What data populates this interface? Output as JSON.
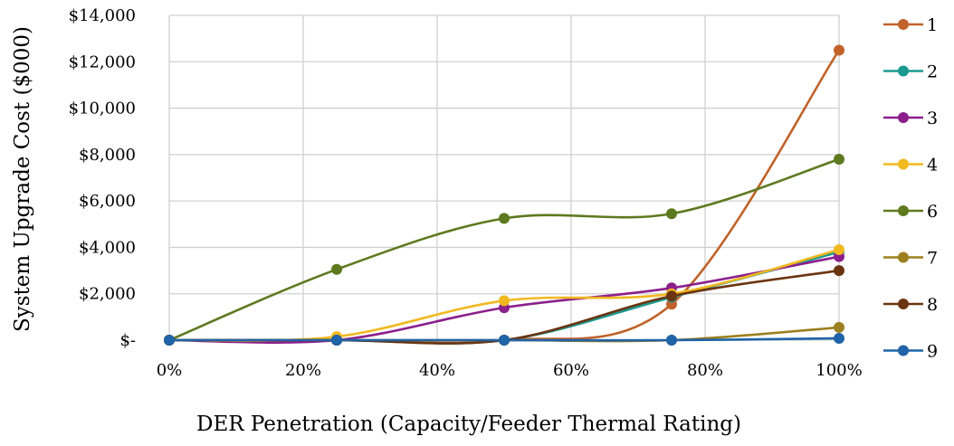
{
  "chart_data": {
    "type": "line",
    "title": "",
    "xlabel": "DER Penetration (Capacity/Feeder Thermal Rating)",
    "ylabel": "System Upgrade Cost ($000)",
    "x": [
      0,
      25,
      50,
      75,
      100
    ],
    "xticks": [
      0,
      20,
      40,
      60,
      80,
      100
    ],
    "xtick_labels": [
      "0%",
      "20%",
      "40%",
      "60%",
      "80%",
      "100%"
    ],
    "xlim": [
      0,
      100
    ],
    "yticks": [
      0,
      2000,
      4000,
      6000,
      8000,
      10000,
      12000,
      14000
    ],
    "ytick_labels": [
      "$-",
      "$2,000",
      "$4,000",
      "$6,000",
      "$8,000",
      "$10,000",
      "$12,000",
      "$14,000"
    ],
    "ylim": [
      0,
      14000
    ],
    "grid": true,
    "smooth": true,
    "legend_position": "right",
    "series": [
      {
        "name": "1",
        "color": "#C0622A",
        "values": [
          0,
          0,
          0,
          1550,
          12500
        ]
      },
      {
        "name": "2",
        "color": "#1A9990",
        "values": [
          0,
          0,
          0,
          1850,
          3800
        ]
      },
      {
        "name": "3",
        "color": "#8B1F8C",
        "values": [
          0,
          0,
          1400,
          2250,
          3600
        ]
      },
      {
        "name": "4",
        "color": "#F2B81F",
        "values": [
          0,
          150,
          1700,
          2000,
          3900
        ]
      },
      {
        "name": "6",
        "color": "#5D7A1F",
        "values": [
          0,
          3050,
          5250,
          5450,
          7800
        ]
      },
      {
        "name": "7",
        "color": "#9C7F1E",
        "values": [
          0,
          0,
          0,
          0,
          550
        ]
      },
      {
        "name": "8",
        "color": "#6B3410",
        "values": [
          0,
          0,
          0,
          1900,
          3000
        ]
      },
      {
        "name": "9",
        "color": "#1F63A8",
        "values": [
          0,
          0,
          0,
          0,
          80
        ]
      }
    ]
  }
}
